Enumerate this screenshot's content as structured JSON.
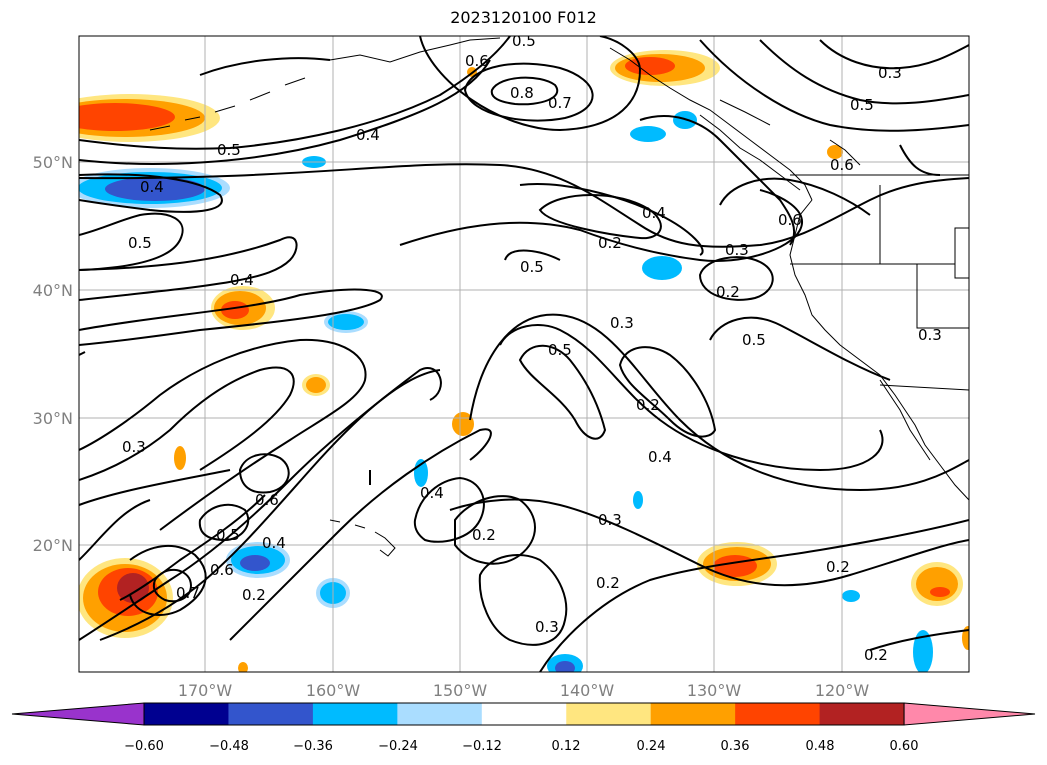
{
  "title": "2023120100 F012",
  "latitude_labels": [
    "50°N",
    "40°N",
    "30°N",
    "20°N"
  ],
  "longitude_labels": [
    "170°W",
    "160°W",
    "150°W",
    "140°W",
    "130°W",
    "120°W"
  ],
  "colorbar": {
    "colors": [
      "#9933cc",
      "#000090",
      "#3355cc",
      "#00bbff",
      "#aaddff",
      "#ffffff",
      "#ffe680",
      "#ffa000",
      "#ff4400",
      "#b22222",
      "#ff88aa"
    ],
    "tick_labels": [
      "−0.60",
      "−0.48",
      "−0.36",
      "−0.24",
      "−0.12",
      "0.12",
      "0.24",
      "0.36",
      "0.48",
      "0.60"
    ]
  },
  "contour_labels": [
    "0.5",
    "0.6",
    "0.8",
    "0.7",
    "0.4",
    "0.5",
    "0.4",
    "0.5",
    "0.4",
    "0.2",
    "0.3",
    "0.2",
    "0.5",
    "0.6",
    "0.6",
    "0.4",
    "0.3",
    "0.5",
    "0.5",
    "0.2",
    "0.4",
    "0.3",
    "0.5",
    "0.6",
    "0.5",
    "0.6",
    "0.7",
    "0.4",
    "0.2",
    "0.4",
    "0.2",
    "0.3",
    "0.2",
    "0.3",
    "0.2",
    "0.2",
    "0.3",
    "0.3"
  ]
}
